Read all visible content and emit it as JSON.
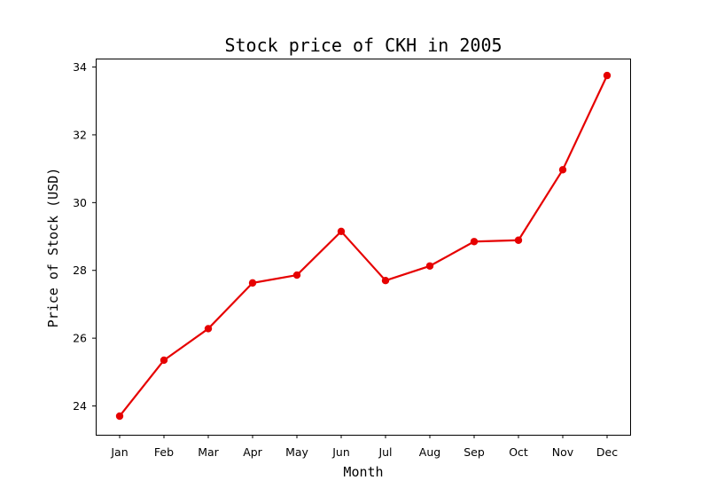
{
  "chart_data": {
    "type": "line",
    "title": "Stock price of CKH in 2005",
    "xlabel": "Month",
    "ylabel": "Price of Stock (USD)",
    "categories": [
      "Jan",
      "Feb",
      "Mar",
      "Apr",
      "May",
      "Jun",
      "Jul",
      "Aug",
      "Sep",
      "Oct",
      "Nov",
      "Dec"
    ],
    "series": [
      {
        "values": [
          23.7,
          25.35,
          26.28,
          27.63,
          27.86,
          29.15,
          27.7,
          28.13,
          28.85,
          28.89,
          30.97,
          33.75
        ],
        "color": "#e60000"
      }
    ],
    "ylim": [
      23.15,
      34.25
    ],
    "yticks": [
      24,
      26,
      28,
      30,
      32,
      34
    ],
    "grid": false,
    "legend": "none"
  }
}
